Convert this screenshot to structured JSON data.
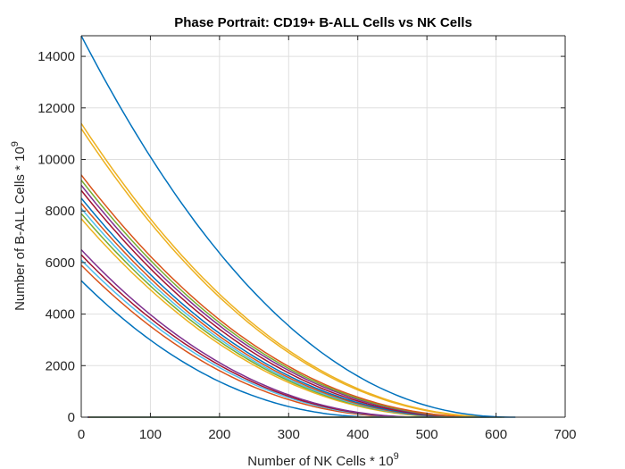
{
  "chart_data": {
    "type": "line",
    "title": "Phase Portrait: CD19+ B-ALL Cells vs NK Cells",
    "xlabel": "Number of NK Cells * 10",
    "xlabel_exponent": "9",
    "ylabel": "Number of B-ALL Cells * 10",
    "ylabel_exponent": "9",
    "xlim": [
      0,
      700
    ],
    "ylim": [
      0,
      14800
    ],
    "xticks": [
      0,
      100,
      200,
      300,
      400,
      500,
      600,
      700
    ],
    "yticks": [
      0,
      2000,
      4000,
      6000,
      8000,
      10000,
      12000,
      14000
    ],
    "grid": true,
    "legend": "none",
    "colors": [
      "#0072BD",
      "#D95319",
      "#EDB120",
      "#7E2F8E",
      "#77AC30",
      "#4DBEEE",
      "#A2142F"
    ],
    "series": [
      {
        "color": "#0072BD",
        "xmax": 437,
        "y0": 5300
      },
      {
        "color": "#D95319",
        "xmax": 480,
        "y0": 5900
      },
      {
        "color": "#4DBEEE",
        "xmax": 490,
        "y0": 6100
      },
      {
        "color": "#A2142F",
        "xmax": 495,
        "y0": 6300
      },
      {
        "color": "#7E2F8E",
        "xmax": 500,
        "y0": 6500
      },
      {
        "color": "#EDB120",
        "xmax": 548,
        "y0": 7700
      },
      {
        "color": "#77AC30",
        "xmax": 553,
        "y0": 7900
      },
      {
        "color": "#4DBEEE",
        "xmax": 556,
        "y0": 8100
      },
      {
        "color": "#D95319",
        "xmax": 560,
        "y0": 8300
      },
      {
        "color": "#0072BD",
        "xmax": 565,
        "y0": 8500
      },
      {
        "color": "#A2142F",
        "xmax": 572,
        "y0": 8800
      },
      {
        "color": "#7E2F8E",
        "xmax": 580,
        "y0": 9000
      },
      {
        "color": "#77AC30",
        "xmax": 585,
        "y0": 9200
      },
      {
        "color": "#D95319",
        "xmax": 590,
        "y0": 9400
      },
      {
        "color": "#EDB120",
        "xmax": 608,
        "y0": 11200
      },
      {
        "color": "#EDB120",
        "xmax": 612,
        "y0": 11400
      },
      {
        "color": "#0072BD",
        "xmax": 628,
        "y0": 14800
      }
    ]
  }
}
